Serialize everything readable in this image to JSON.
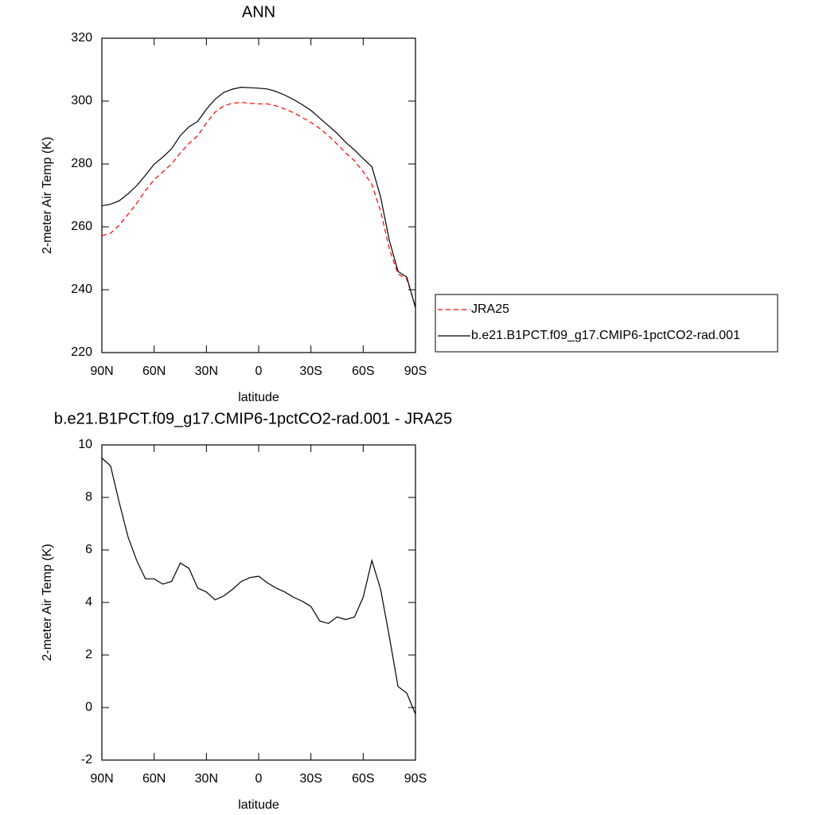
{
  "chart_data": [
    {
      "type": "line",
      "title": "ANN",
      "x_label": "latitude",
      "y_label": "2-meter Air Temp (K)",
      "x": [
        90,
        85,
        80,
        75,
        70,
        65,
        60,
        55,
        50,
        45,
        40,
        35,
        30,
        25,
        20,
        15,
        10,
        5,
        0,
        -5,
        -10,
        -15,
        -20,
        -25,
        -30,
        -35,
        -40,
        -45,
        -50,
        -55,
        -60,
        -65,
        -70,
        -75,
        -80,
        -85,
        -90
      ],
      "series": [
        {
          "name": "JRA25",
          "color": "#ff0000",
          "dashed": true,
          "values": [
            257.2,
            258,
            260.5,
            264,
            267.5,
            271.5,
            275,
            277.5,
            280,
            283.5,
            286.5,
            289,
            293,
            296.5,
            298.5,
            299.3,
            299.6,
            299.3,
            299.1,
            299.1,
            298.5,
            297.5,
            296.3,
            294.8,
            293.2,
            291.3,
            289,
            286.3,
            283.5,
            281,
            277.5,
            273.5,
            265,
            253,
            245,
            243.5,
            234.5
          ]
        },
        {
          "name": "b.e21.B1PCT.f09_g17.CMIP6-1pctCO2-rad.001",
          "color": "#000000",
          "dashed": false,
          "values": [
            266.7,
            267.2,
            268.3,
            270.5,
            273.1,
            276.4,
            279.9,
            282.2,
            284.8,
            289.0,
            291.8,
            293.55,
            297.4,
            300.6,
            302.75,
            303.8,
            304.4,
            304.25,
            304.1,
            303.85,
            303.05,
            301.9,
            300.5,
            298.85,
            297.05,
            294.6,
            292.2,
            289.75,
            286.85,
            284.45,
            281.7,
            279.1,
            269.5,
            255.7,
            245.8,
            244.05,
            234.25
          ]
        }
      ],
      "xlim": [
        90,
        -90
      ],
      "xticks": [
        {
          "value": 90,
          "label": "90N"
        },
        {
          "value": 60,
          "label": "60N"
        },
        {
          "value": 30,
          "label": "30N"
        },
        0,
        {
          "value": -30,
          "label": "30S"
        },
        {
          "value": -60,
          "label": "60S"
        },
        {
          "value": -90,
          "label": "90S"
        }
      ],
      "ylim": [
        220,
        320
      ],
      "yticks": [
        220,
        240,
        260,
        280,
        300,
        320
      ],
      "legend": "right"
    },
    {
      "type": "line",
      "title": "b.e21.B1PCT.f09_g17.CMIP6-1pctCO2-rad.001 - JRA25",
      "x_label": "latitude",
      "y_label": "2-meter Air Temp (K)",
      "x": [
        90,
        85,
        80,
        75,
        70,
        65,
        60,
        55,
        50,
        45,
        40,
        35,
        30,
        25,
        20,
        15,
        10,
        5,
        0,
        -5,
        -10,
        -15,
        -20,
        -25,
        -30,
        -35,
        -40,
        -45,
        -50,
        -55,
        -60,
        -65,
        -70,
        -75,
        -80,
        -85,
        -90
      ],
      "series": [
        {
          "color": "#000000",
          "dashed": false,
          "values": [
            9.5,
            9.2,
            7.8,
            6.5,
            5.6,
            4.9,
            4.9,
            4.7,
            4.8,
            5.5,
            5.3,
            4.55,
            4.4,
            4.1,
            4.25,
            4.5,
            4.8,
            4.95,
            5.0,
            4.75,
            4.55,
            4.4,
            4.2,
            4.05,
            3.85,
            3.3,
            3.2,
            3.45,
            3.35,
            3.45,
            4.2,
            5.6,
            4.5,
            2.7,
            0.8,
            0.55,
            -0.25
          ]
        }
      ],
      "xlim": [
        90,
        -90
      ],
      "xticks": [
        {
          "value": 90,
          "label": "90N"
        },
        {
          "value": 60,
          "label": "60N"
        },
        {
          "value": 30,
          "label": "30N"
        },
        0,
        {
          "value": -30,
          "label": "30S"
        },
        {
          "value": -60,
          "label": "60S"
        },
        {
          "value": -90,
          "label": "90S"
        }
      ],
      "ylim": [
        -2,
        10
      ],
      "yticks": [
        -2,
        0,
        2,
        4,
        6,
        8,
        10
      ]
    }
  ]
}
